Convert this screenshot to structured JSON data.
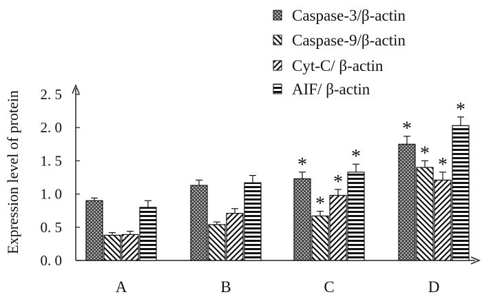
{
  "chart_data": {
    "type": "bar",
    "title": "",
    "xlabel": "",
    "ylabel": "Expression level of protein",
    "ylim": [
      0,
      2.5
    ],
    "yticks": [
      "0. 0",
      "0. 5",
      "1. 0",
      "1. 5",
      "2. 0",
      "2. 5"
    ],
    "categories": [
      "A",
      "B",
      "C",
      "D"
    ],
    "legend_position": "top-right",
    "grid": false,
    "significance_marker": "*",
    "series": [
      {
        "name": "Caspase-3/β-actin",
        "pattern": "crosshatch",
        "values": [
          0.9,
          1.13,
          1.23,
          1.75
        ],
        "errors": [
          0.04,
          0.08,
          0.1,
          0.12
        ],
        "significant": [
          false,
          false,
          true,
          true
        ]
      },
      {
        "name": "Caspase-9/β-actin",
        "pattern": "backslash",
        "values": [
          0.38,
          0.54,
          0.67,
          1.4
        ],
        "errors": [
          0.04,
          0.04,
          0.07,
          0.1
        ],
        "significant": [
          false,
          false,
          true,
          true
        ]
      },
      {
        "name": "Cyt-C/ β-actin",
        "pattern": "slash",
        "values": [
          0.39,
          0.71,
          0.98,
          1.21
        ],
        "errors": [
          0.05,
          0.07,
          0.09,
          0.12
        ],
        "significant": [
          false,
          false,
          true,
          true
        ]
      },
      {
        "name": "AIF/ β-actin",
        "pattern": "horizontal",
        "values": [
          0.8,
          1.17,
          1.33,
          2.03
        ],
        "errors": [
          0.1,
          0.11,
          0.12,
          0.13
        ],
        "significant": [
          false,
          false,
          true,
          true
        ]
      }
    ]
  }
}
